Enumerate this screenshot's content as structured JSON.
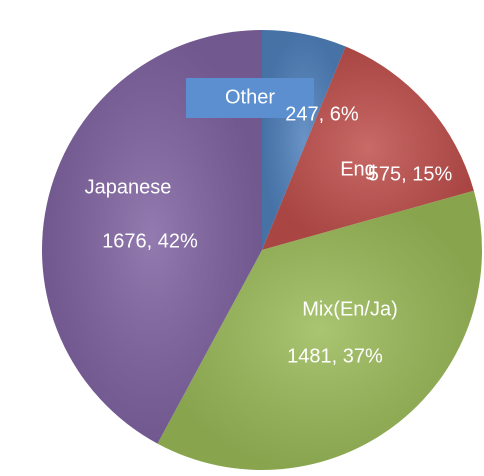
{
  "chart_data": {
    "type": "pie",
    "categories": [
      "Other",
      "Eng",
      "Mix(En/Ja)",
      "Japanese"
    ],
    "values": [
      247,
      575,
      1481,
      1676
    ],
    "value_labels": [
      "247, 6%",
      "575, 15%",
      "1481, 37%",
      "1676, 42%"
    ],
    "colors": [
      "#4f81bd",
      "#c0504d",
      "#9bbb59",
      "#8064a2"
    ]
  }
}
